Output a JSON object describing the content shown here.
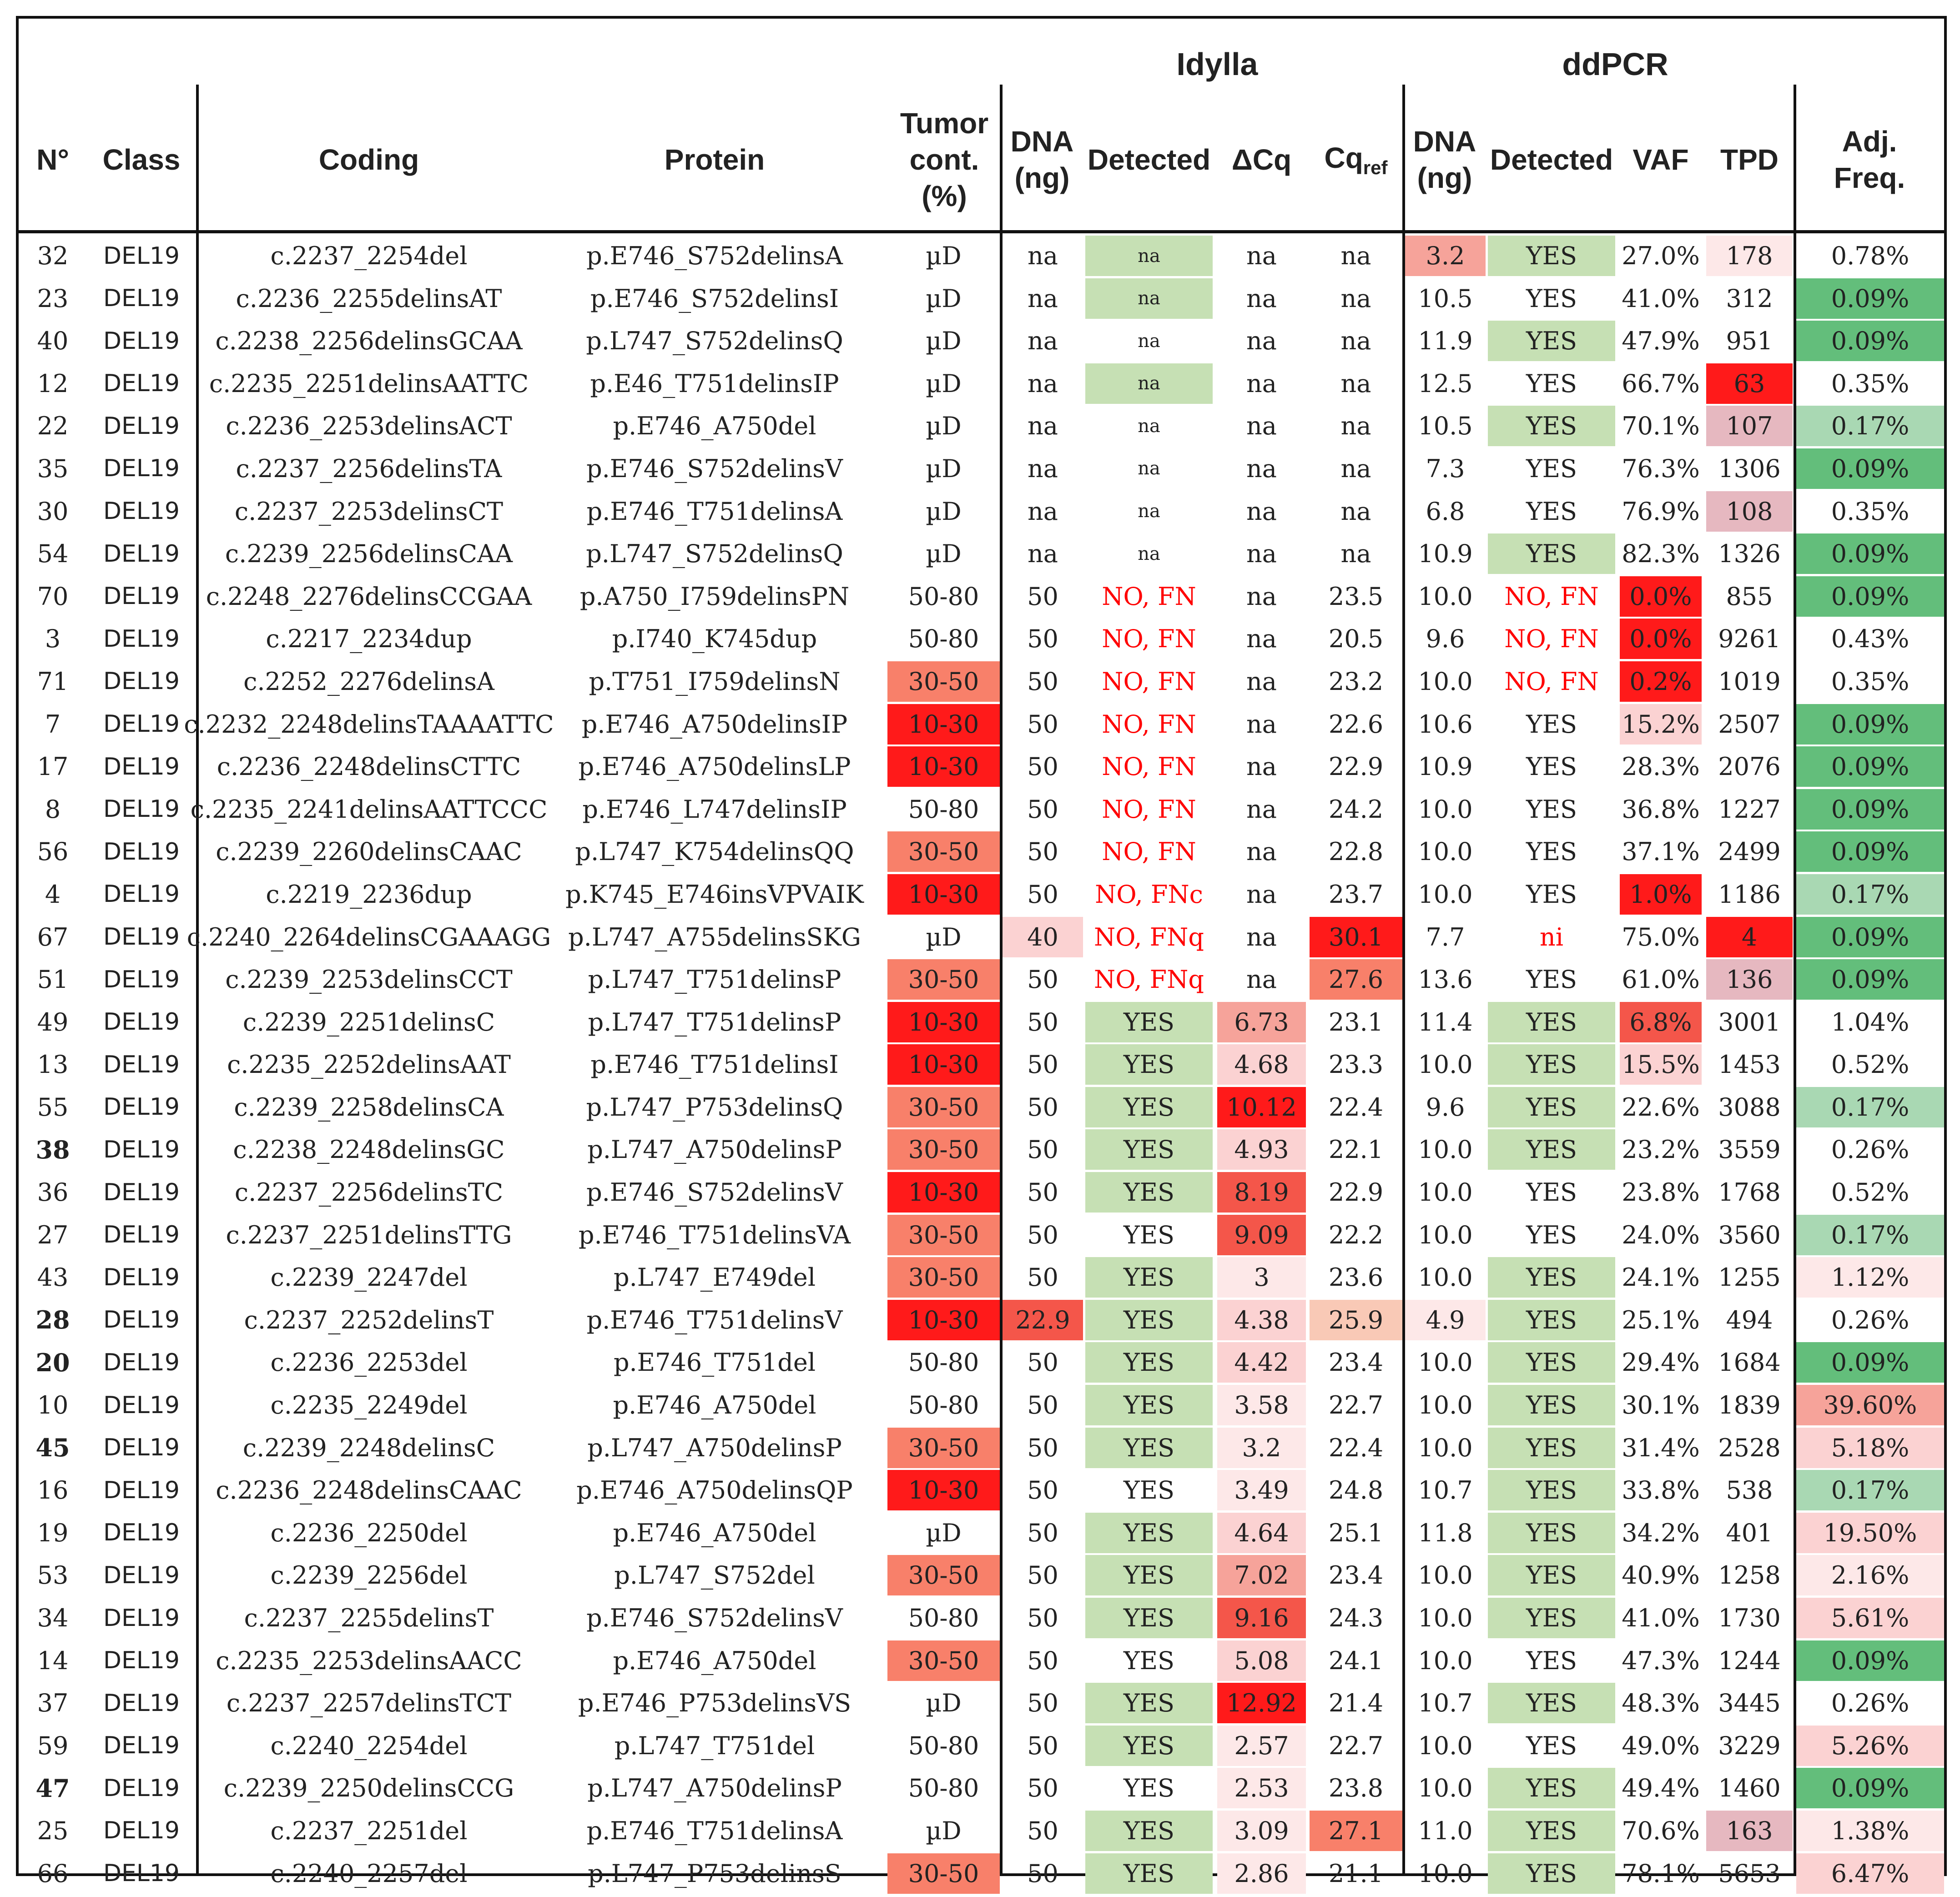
{
  "colors": {
    "green_light": "#c6e0b4",
    "green_dark": "#63be7b",
    "green_mid": "#a9d8b3",
    "red_strong": "#ff1a1a",
    "red_mid": "#f4564a",
    "red_salmon": "#f8806a",
    "pink_light": "#fbd2d2",
    "pink_pale": "#fde8e8",
    "mauve": "#e6b8c0",
    "text_red": "#ff0000"
  },
  "groups": {
    "idylla": "Idylla",
    "ddpcr": "ddPCR"
  },
  "headers": {
    "n": "N°",
    "class": "Class",
    "coding": "Coding",
    "protein": "Protein",
    "tumor_l1": "Tumor",
    "tumor_l2": "cont.",
    "tumor_l3": "(%)",
    "dna_l1": "DNA",
    "dna_l2": "(ng)",
    "detected": "Detected",
    "dcq": "ΔCq",
    "cq": "Cq",
    "cq_sub": "ref",
    "dna2_l1": "DNA",
    "dna2_l2": "(ng)",
    "detected2": "Detected",
    "vaf": "VAF",
    "tpd": "TPD",
    "adj_l1": "Adj.",
    "adj_l2": "Freq."
  },
  "rows": [
    [
      "32",
      "DEL19",
      "c.2237_2254del",
      "p.E746_S752delinsA",
      "µD",
      "na",
      "na",
      "na",
      "na",
      "3.2",
      "YES",
      "27.0%",
      "178",
      "0.78%"
    ],
    [
      "23",
      "DEL19",
      "c.2236_2255delinsAT",
      "p.E746_S752delinsI",
      "µD",
      "na",
      "na",
      "na",
      "na",
      "10.5",
      "YES",
      "41.0%",
      "312",
      "0.09%"
    ],
    [
      "40",
      "DEL19",
      "c.2238_2256delinsGCAA",
      "p.L747_S752delinsQ",
      "µD",
      "na",
      "na",
      "na",
      "na",
      "11.9",
      "YES",
      "47.9%",
      "951",
      "0.09%"
    ],
    [
      "12",
      "DEL19",
      "c.2235_2251delinsAATTC",
      "p.E46_T751delinsIP",
      "µD",
      "na",
      "na",
      "na",
      "na",
      "12.5",
      "YES",
      "66.7%",
      "63",
      "0.35%"
    ],
    [
      "22",
      "DEL19",
      "c.2236_2253delinsACT",
      "p.E746_A750del",
      "µD",
      "na",
      "na",
      "na",
      "na",
      "10.5",
      "YES",
      "70.1%",
      "107",
      "0.17%"
    ],
    [
      "35",
      "DEL19",
      "c.2237_2256delinsTA",
      "p.E746_S752delinsV",
      "µD",
      "na",
      "na",
      "na",
      "na",
      "7.3",
      "YES",
      "76.3%",
      "1306",
      "0.09%"
    ],
    [
      "30",
      "DEL19",
      "c.2237_2253delinsCT",
      "p.E746_T751delinsA",
      "µD",
      "na",
      "na",
      "na",
      "na",
      "6.8",
      "YES",
      "76.9%",
      "108",
      "0.35%"
    ],
    [
      "54",
      "DEL19",
      "c.2239_2256delinsCAA",
      "p.L747_S752delinsQ",
      "µD",
      "na",
      "na",
      "na",
      "na",
      "10.9",
      "YES",
      "82.3%",
      "1326",
      "0.09%"
    ],
    [
      "70",
      "DEL19",
      "c.2248_2276delinsCCGAA",
      "p.A750_I759delinsPN",
      "50-80",
      "50",
      "NO, FN",
      "na",
      "23.5",
      "10.0",
      "NO, FN",
      "0.0%",
      "855",
      "0.09%"
    ],
    [
      "3",
      "DEL19",
      "c.2217_2234dup",
      "p.I740_K745dup",
      "50-80",
      "50",
      "NO, FN",
      "na",
      "20.5",
      "9.6",
      "NO, FN",
      "0.0%",
      "9261",
      "0.43%"
    ],
    [
      "71",
      "DEL19",
      "c.2252_2276delinsA",
      "p.T751_I759delinsN",
      "30-50",
      "50",
      "NO, FN",
      "na",
      "23.2",
      "10.0",
      "NO, FN",
      "0.2%",
      "1019",
      "0.35%"
    ],
    [
      "7",
      "DEL19",
      "c.2232_2248delinsTAAAATTC",
      "p.E746_A750delinsIP",
      "10-30",
      "50",
      "NO, FN",
      "na",
      "22.6",
      "10.6",
      "YES",
      "15.2%",
      "2507",
      "0.09%"
    ],
    [
      "17",
      "DEL19",
      "c.2236_2248delinsCTTC",
      "p.E746_A750delinsLP",
      "10-30",
      "50",
      "NO, FN",
      "na",
      "22.9",
      "10.9",
      "YES",
      "28.3%",
      "2076",
      "0.09%"
    ],
    [
      "8",
      "DEL19",
      "c.2235_2241delinsAATTCCC",
      "p.E746_L747delinsIP",
      "50-80",
      "50",
      "NO, FN",
      "na",
      "24.2",
      "10.0",
      "YES",
      "36.8%",
      "1227",
      "0.09%"
    ],
    [
      "56",
      "DEL19",
      "c.2239_2260delinsCAAC",
      "p.L747_K754delinsQQ",
      "30-50",
      "50",
      "NO, FN",
      "na",
      "22.8",
      "10.0",
      "YES",
      "37.1%",
      "2499",
      "0.09%"
    ],
    [
      "4",
      "DEL19",
      "c.2219_2236dup",
      "p.K745_E746insVPVAIK",
      "10-30",
      "50",
      "NO, FNc",
      "na",
      "23.7",
      "10.0",
      "YES",
      "1.0%",
      "1186",
      "0.17%"
    ],
    [
      "67",
      "DEL19",
      "c.2240_2264delinsCGAAAGG",
      "p.L747_A755delinsSKG",
      "µD",
      "40",
      "NO, FNq",
      "na",
      "30.1",
      "7.7",
      "ni",
      "75.0%",
      "4",
      "0.09%"
    ],
    [
      "51",
      "DEL19",
      "c.2239_2253delinsCCT",
      "p.L747_T751delinsP",
      "30-50",
      "50",
      "NO, FNq",
      "na",
      "27.6",
      "13.6",
      "YES",
      "61.0%",
      "136",
      "0.09%"
    ],
    [
      "49",
      "DEL19",
      "c.2239_2251delinsC",
      "p.L747_T751delinsP",
      "10-30",
      "50",
      "YES",
      "6.73",
      "23.1",
      "11.4",
      "YES",
      "6.8%",
      "3001",
      "1.04%"
    ],
    [
      "13",
      "DEL19",
      "c.2235_2252delinsAAT",
      "p.E746_T751delinsI",
      "10-30",
      "50",
      "YES",
      "4.68",
      "23.3",
      "10.0",
      "YES",
      "15.5%",
      "1453",
      "0.52%"
    ],
    [
      "55",
      "DEL19",
      "c.2239_2258delinsCA",
      "p.L747_P753delinsQ",
      "30-50",
      "50",
      "YES",
      "10.12",
      "22.4",
      "9.6",
      "YES",
      "22.6%",
      "3088",
      "0.17%"
    ],
    [
      "38",
      "DEL19",
      "c.2238_2248delinsGC",
      "p.L747_A750delinsP",
      "30-50",
      "50",
      "YES",
      "4.93",
      "22.1",
      "10.0",
      "YES",
      "23.2%",
      "3559",
      "0.26%"
    ],
    [
      "36",
      "DEL19",
      "c.2237_2256delinsTC",
      "p.E746_S752delinsV",
      "10-30",
      "50",
      "YES",
      "8.19",
      "22.9",
      "10.0",
      "YES",
      "23.8%",
      "1768",
      "0.52%"
    ],
    [
      "27",
      "DEL19",
      "c.2237_2251delinsTTG",
      "p.E746_T751delinsVA",
      "30-50",
      "50",
      "YES",
      "9.09",
      "22.2",
      "10.0",
      "YES",
      "24.0%",
      "3560",
      "0.17%"
    ],
    [
      "43",
      "DEL19",
      "c.2239_2247del",
      "p.L747_E749del",
      "30-50",
      "50",
      "YES",
      "3",
      "23.6",
      "10.0",
      "YES",
      "24.1%",
      "1255",
      "1.12%"
    ],
    [
      "28",
      "DEL19",
      "c.2237_2252delinsT",
      "p.E746_T751delinsV",
      "10-30",
      "22.9",
      "YES",
      "4.38",
      "25.9",
      "4.9",
      "YES",
      "25.1%",
      "494",
      "0.26%"
    ],
    [
      "20",
      "DEL19",
      "c.2236_2253del",
      "p.E746_T751del",
      "50-80",
      "50",
      "YES",
      "4.42",
      "23.4",
      "10.0",
      "YES",
      "29.4%",
      "1684",
      "0.09%"
    ],
    [
      "10",
      "DEL19",
      "c.2235_2249del",
      "p.E746_A750del",
      "50-80",
      "50",
      "YES",
      "3.58",
      "22.7",
      "10.0",
      "YES",
      "30.1%",
      "1839",
      "39.60%"
    ],
    [
      "45",
      "DEL19",
      "c.2239_2248delinsC",
      "p.L747_A750delinsP",
      "30-50",
      "50",
      "YES",
      "3.2",
      "22.4",
      "10.0",
      "YES",
      "31.4%",
      "2528",
      "5.18%"
    ],
    [
      "16",
      "DEL19",
      "c.2236_2248delinsCAAC",
      "p.E746_A750delinsQP",
      "10-30",
      "50",
      "YES",
      "3.49",
      "24.8",
      "10.7",
      "YES",
      "33.8%",
      "538",
      "0.17%"
    ],
    [
      "19",
      "DEL19",
      "c.2236_2250del",
      "p.E746_A750del",
      "µD",
      "50",
      "YES",
      "4.64",
      "25.1",
      "11.8",
      "YES",
      "34.2%",
      "401",
      "19.50%"
    ],
    [
      "53",
      "DEL19",
      "c.2239_2256del",
      "p.L747_S752del",
      "30-50",
      "50",
      "YES",
      "7.02",
      "23.4",
      "10.0",
      "YES",
      "40.9%",
      "1258",
      "2.16%"
    ],
    [
      "34",
      "DEL19",
      "c.2237_2255delinsT",
      "p.E746_S752delinsV",
      "50-80",
      "50",
      "YES",
      "9.16",
      "24.3",
      "10.0",
      "YES",
      "41.0%",
      "1730",
      "5.61%"
    ],
    [
      "14",
      "DEL19",
      "c.2235_2253delinsAACC",
      "p.E746_A750del",
      "30-50",
      "50",
      "YES",
      "5.08",
      "24.1",
      "10.0",
      "YES",
      "47.3%",
      "1244",
      "0.09%"
    ],
    [
      "37",
      "DEL19",
      "c.2237_2257delinsTCT",
      "p.E746_P753delinsVS",
      "µD",
      "50",
      "YES",
      "12.92",
      "21.4",
      "10.7",
      "YES",
      "48.3%",
      "3445",
      "0.26%"
    ],
    [
      "59",
      "DEL19",
      "c.2240_2254del",
      "p.L747_T751del",
      "50-80",
      "50",
      "YES",
      "2.57",
      "22.7",
      "10.0",
      "YES",
      "49.0%",
      "3229",
      "5.26%"
    ],
    [
      "47",
      "DEL19",
      "c.2239_2250delinsCCG",
      "p.L747_A750delinsP",
      "50-80",
      "50",
      "YES",
      "2.53",
      "23.8",
      "10.0",
      "YES",
      "49.4%",
      "1460",
      "0.09%"
    ],
    [
      "25",
      "DEL19",
      "c.2237_2251del",
      "p.E746_T751delinsA",
      "µD",
      "50",
      "YES",
      "3.09",
      "27.1",
      "11.0",
      "YES",
      "70.6%",
      "163",
      "1.38%"
    ],
    [
      "66",
      "DEL19",
      "c.2240_2257del",
      "p.L747_P753delinsS",
      "30-50",
      "50",
      "YES",
      "2.86",
      "21.1",
      "10.0",
      "YES",
      "78.1%",
      "5653",
      "6.47%"
    ]
  ],
  "bold_ids": [
    "38",
    "28",
    "20",
    "45",
    "47"
  ],
  "fills": {
    "tumor": {
      "10": "salmon",
      "11": "red_strong",
      "12": "red_strong",
      "14": "salmon",
      "15": "red_strong",
      "17": "salmon",
      "18": "red_strong",
      "19": "red_strong",
      "20": "salmon",
      "21": "salmon",
      "22": "red_strong",
      "23": "salmon",
      "24": "salmon",
      "25": "red_strong",
      "28": "salmon",
      "29": "red_strong",
      "31": "salmon",
      "33": "salmon",
      "38": "salmon"
    },
    "dna": {
      "16": "pink_light",
      "25": "red_mid"
    },
    "detected": {
      "0": "green_light",
      "1": "green_light",
      "3": "green_light",
      "18": "green_light",
      "19": "green_light",
      "20": "green_light",
      "21": "green_light",
      "22": "green_light",
      "24": "green_light",
      "25": "green_light",
      "26": "green_light",
      "27": "green_light",
      "28": "green_light",
      "30": "green_light",
      "31": "green_light",
      "32": "green_light",
      "34": "green_light",
      "35": "green_light",
      "37": "green_light",
      "38": "green_light"
    },
    "dcq": {
      "18": "red_salmon_light",
      "19": "pink_light",
      "20": "red_strong",
      "21": "pink_light",
      "22": "red_mid",
      "23": "red_mid",
      "24": "pink_pale",
      "25": "pink_light",
      "26": "pink_light",
      "27": "pink_pale",
      "28": "pink_pale",
      "29": "pink_pale",
      "30": "pink_light",
      "31": "red_salmon_light",
      "32": "red_mid",
      "33": "pink_light",
      "34": "red_strong",
      "35": "pink_pale",
      "36": "pink_pale",
      "37": "pink_pale",
      "38": "pink_pale"
    },
    "cq": {
      "16": "red_strong",
      "17": "salmon",
      "25": "peach",
      "37": "salmon"
    },
    "dna2": {
      "0": "red_salmon_light",
      "25": "pink_pale"
    },
    "detected2": {
      "0": "green_light",
      "2": "green_light",
      "4": "green_light",
      "7": "green_light",
      "18": "green_light",
      "19": "green_light",
      "20": "green_light",
      "21": "green_light",
      "24": "green_light",
      "25": "green_light",
      "26": "green_light",
      "27": "green_light",
      "28": "green_light",
      "29": "green_light",
      "30": "green_light",
      "31": "green_light",
      "32": "green_light",
      "34": "green_light",
      "36": "green_light",
      "37": "green_light",
      "38": "green_light"
    },
    "vaf": {
      "8": "red_strong",
      "9": "red_strong",
      "10": "red_strong",
      "11": "pink_light",
      "15": "red_strong",
      "18": "red_mid",
      "19": "pink_light"
    },
    "tpd": {
      "0": "pink_pale",
      "3": "red_strong",
      "4": "mauve",
      "6": "mauve",
      "16": "red_strong",
      "17": "mauve",
      "37": "mauve"
    },
    "adj": {
      "1": "green_dark",
      "2": "green_dark",
      "4": "green_mid",
      "5": "green_dark",
      "7": "green_dark",
      "8": "green_dark",
      "11": "green_dark",
      "12": "green_dark",
      "13": "green_dark",
      "14": "green_dark",
      "15": "green_mid",
      "16": "green_dark",
      "17": "green_dark",
      "20": "green_mid",
      "23": "green_mid",
      "24": "pink_pale",
      "26": "green_dark",
      "27": "red_salmon_light",
      "28": "pink_light",
      "29": "green_mid",
      "30": "pink_light",
      "31": "pink_pale",
      "32": "pink_light",
      "33": "green_dark",
      "35": "pink_light",
      "36": "green_dark",
      "37": "pink_pale",
      "38": "pink_light"
    }
  }
}
